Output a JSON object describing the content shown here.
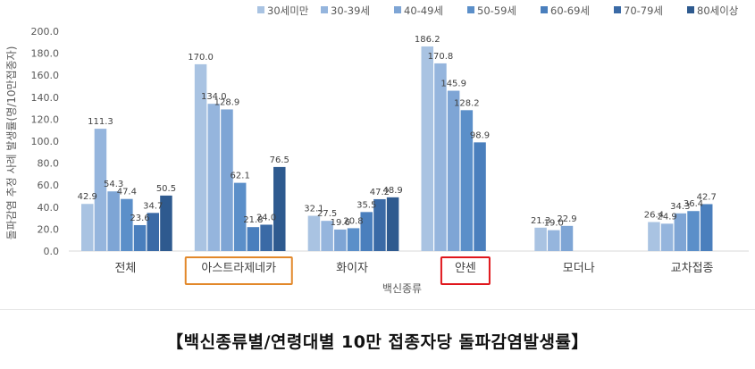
{
  "chart_data": {
    "type": "bar",
    "title": "",
    "xlabel": "백신종류",
    "ylabel": "돌파감염 추정 사례 발생률(명/10만접종자)",
    "ylim": [
      0,
      200
    ],
    "yticks": [
      "0.0",
      "20.0",
      "40.0",
      "60.0",
      "80.0",
      "100.0",
      "120.0",
      "140.0",
      "160.0",
      "180.0",
      "200.0"
    ],
    "legend_position": "top-right",
    "grid": false,
    "categories": [
      "전체",
      "아스트라제네카",
      "화이자",
      "얀센",
      "모더나",
      "교차접종"
    ],
    "series": [
      {
        "name": "30세미만",
        "color": "#a9c3e2",
        "values": [
          42.9,
          170.0,
          32.1,
          186.2,
          21.3,
          26.4
        ],
        "labels": [
          "42.9",
          "170.0",
          "32.1",
          "186.2",
          "21.3",
          "26.4"
        ]
      },
      {
        "name": "30-39세",
        "color": "#95b5dd",
        "values": [
          111.3,
          134.0,
          27.5,
          170.8,
          19.0,
          24.9
        ],
        "labels": [
          "111.3",
          "134.0",
          "27.5",
          "170.8",
          "19.0",
          "24.9"
        ]
      },
      {
        "name": "40-49세",
        "color": "#7ea5d5",
        "values": [
          54.3,
          128.9,
          19.6,
          145.9,
          22.9,
          34.3
        ],
        "labels": [
          "54.3",
          "128.9",
          "19.6",
          "145.9",
          "22.9",
          "34.3"
        ]
      },
      {
        "name": "50-59세",
        "color": "#5b8fc9",
        "values": [
          47.4,
          62.1,
          20.8,
          128.2,
          null,
          36.4
        ],
        "labels": [
          "47.4",
          "62.1",
          "20.8",
          "128.2",
          "",
          "36.4"
        ]
      },
      {
        "name": "60-69세",
        "color": "#4a7fbd",
        "values": [
          23.6,
          21.8,
          35.5,
          98.9,
          null,
          42.7
        ],
        "labels": [
          "23.6",
          "21.8",
          "35.5",
          "98.9",
          "",
          "42.7"
        ]
      },
      {
        "name": "70-79세",
        "color": "#3a6aa6",
        "values": [
          34.7,
          24.0,
          47.2,
          null,
          null,
          null
        ],
        "labels": [
          "34.7",
          "24.0",
          "47.2",
          "",
          "",
          ""
        ]
      },
      {
        "name": "80세이상",
        "color": "#2e5a8f",
        "values": [
          50.5,
          76.5,
          48.9,
          null,
          null,
          null
        ],
        "labels": [
          "50.5",
          "76.5",
          "48.9",
          "",
          "",
          ""
        ]
      }
    ],
    "highlighted_categories": [
      {
        "category": "아스트라제네카",
        "box_color": "#e2882a"
      },
      {
        "category": "얀센",
        "box_color": "#e0161c"
      }
    ]
  },
  "caption": "【백신종류별/연령대별 10만 접종자당 돌파감염발생률】"
}
